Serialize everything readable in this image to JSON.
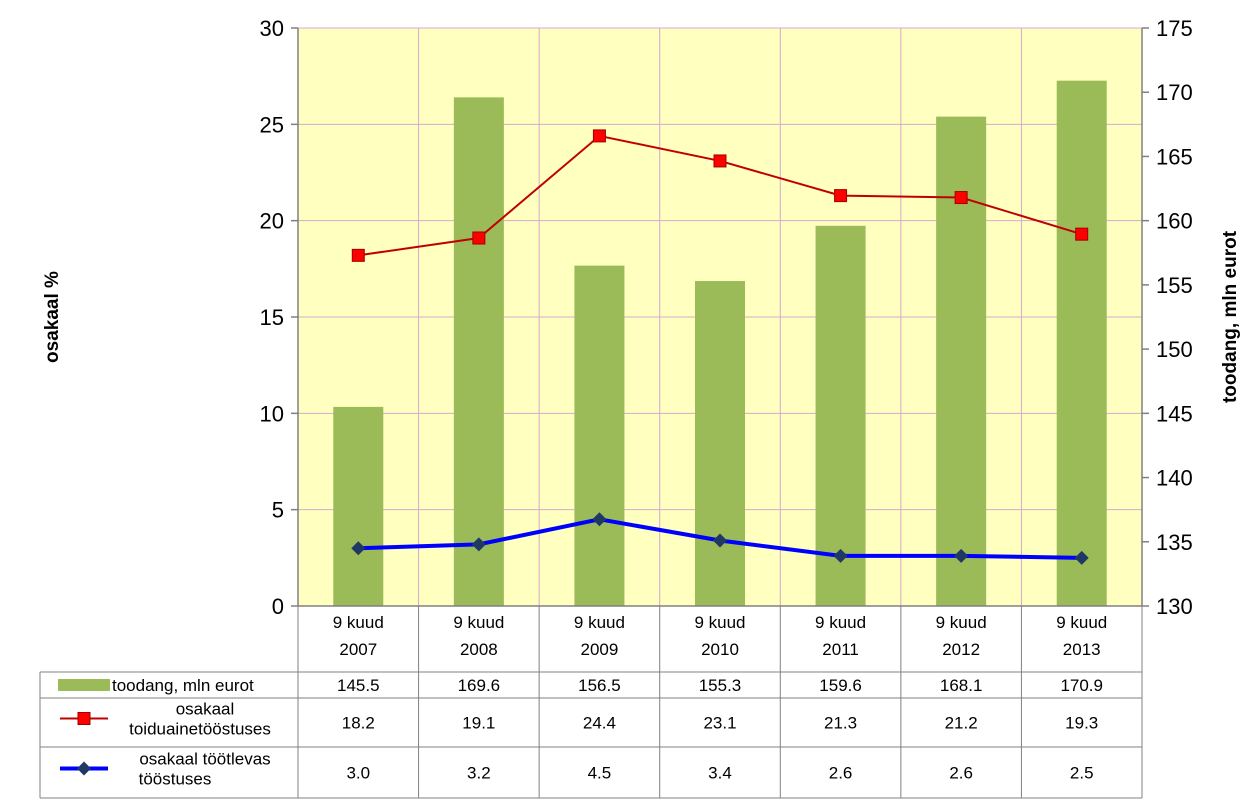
{
  "chart_data": {
    "type": "bar",
    "title": "",
    "xlabel": "",
    "ylabel_left": "osakaal %",
    "ylabel_right": "toodang, mln eurot",
    "categories": [
      [
        "9 kuud",
        "2007"
      ],
      [
        "9 kuud",
        "2008"
      ],
      [
        "9 kuud",
        "2009"
      ],
      [
        "9 kuud",
        "2010"
      ],
      [
        "9 kuud",
        "2011"
      ],
      [
        "9 kuud",
        "2012"
      ],
      [
        "9 kuud",
        "2013"
      ]
    ],
    "ylim_left": [
      0,
      30
    ],
    "yticks_left": [
      "0",
      "5",
      "10",
      "15",
      "20",
      "25",
      "30"
    ],
    "ylim_right": [
      130,
      175
    ],
    "yticks_right": [
      "130",
      "135",
      "140",
      "145",
      "150",
      "155",
      "160",
      "165",
      "170",
      "175"
    ],
    "grid": true,
    "legend_placement": "data-table",
    "series": [
      {
        "name": "toodang, mln eurot",
        "type": "bar",
        "axis": "right",
        "color": "#9bbb59",
        "values": [
          145.5,
          169.6,
          156.5,
          155.3,
          159.6,
          168.1,
          170.9
        ],
        "labels": [
          "145.5",
          "169.6",
          "156.5",
          "155.3",
          "159.6",
          "168.1",
          "170.9"
        ]
      },
      {
        "name": "osakaal toiduainetööstuses",
        "name_lines": [
          "osakaal",
          "toiduainetööstuses"
        ],
        "type": "line",
        "axis": "left",
        "color": "#c00000",
        "marker": "square",
        "marker_color": "#ff0000",
        "values": [
          18.2,
          19.1,
          24.4,
          23.1,
          21.3,
          21.2,
          19.3
        ],
        "labels": [
          "18.2",
          "19.1",
          "24.4",
          "23.1",
          "21.3",
          "21.2",
          "19.3"
        ]
      },
      {
        "name": "osakaal töötlevas tööstuses",
        "name_lines": [
          "osakaal töötlevas",
          "tööstuses"
        ],
        "type": "line",
        "axis": "left",
        "color": "#0000ff",
        "marker": "diamond",
        "marker_color": "#1f3864",
        "values": [
          3.0,
          3.2,
          4.5,
          3.4,
          2.6,
          2.6,
          2.5
        ],
        "labels": [
          "3.0",
          "3.2",
          "4.5",
          "3.4",
          "2.6",
          "2.6",
          "2.5"
        ]
      }
    ],
    "colors": {
      "plot_background": "#ffffc0",
      "gridline": "#d8a8d0",
      "axis": "#808080"
    }
  }
}
